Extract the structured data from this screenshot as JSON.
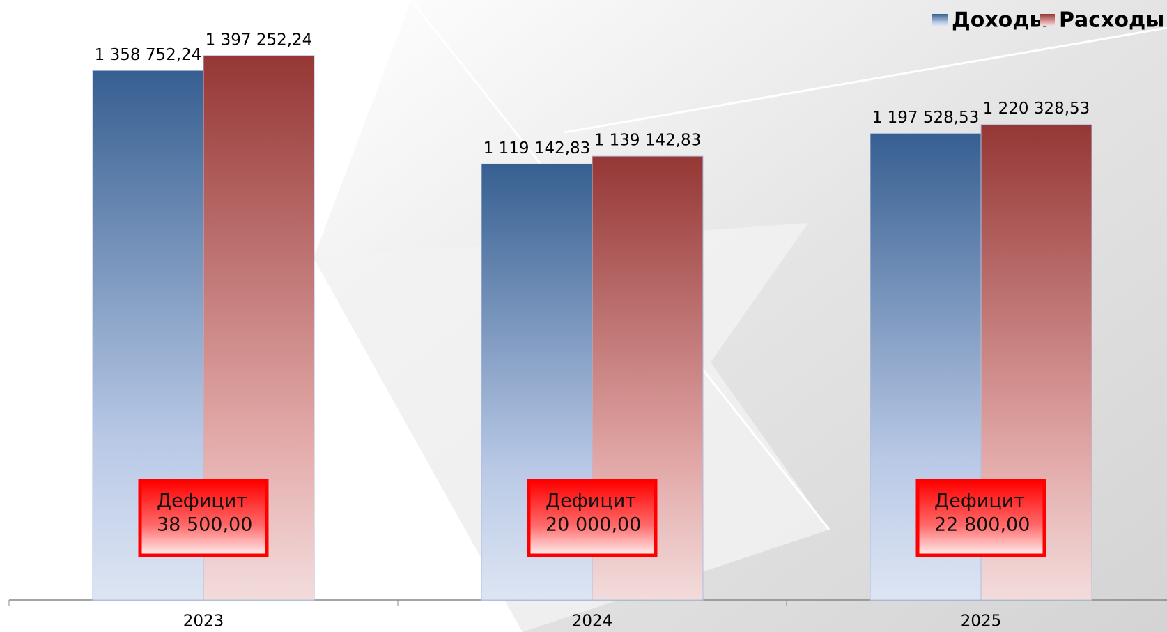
{
  "chart_data": {
    "type": "bar",
    "categories": [
      "2023",
      "2024",
      "2025"
    ],
    "series": [
      {
        "name": "Доходы",
        "color": "#365f91",
        "values": [
          1358752.24,
          1119142.83,
          1197528.53
        ],
        "value_labels": [
          "1 358 752,24",
          "1 119 142,83",
          "1 197 528,53"
        ]
      },
      {
        "name": "Расходы",
        "color": "#953735",
        "values": [
          1397252.24,
          1139142.83,
          1220328.53
        ],
        "value_labels": [
          "1 397 252,24",
          "1 139 142,83",
          "1 220 328,53"
        ]
      }
    ],
    "ylim": [
      0,
      1540000
    ],
    "legend": "top-right",
    "annotations": [
      {
        "title": "Дефицит",
        "text": "38 500,00"
      },
      {
        "title": "Дефицит",
        "text": "20 000,00"
      },
      {
        "title": "Дефицит",
        "text": "22 800,00"
      }
    ]
  }
}
